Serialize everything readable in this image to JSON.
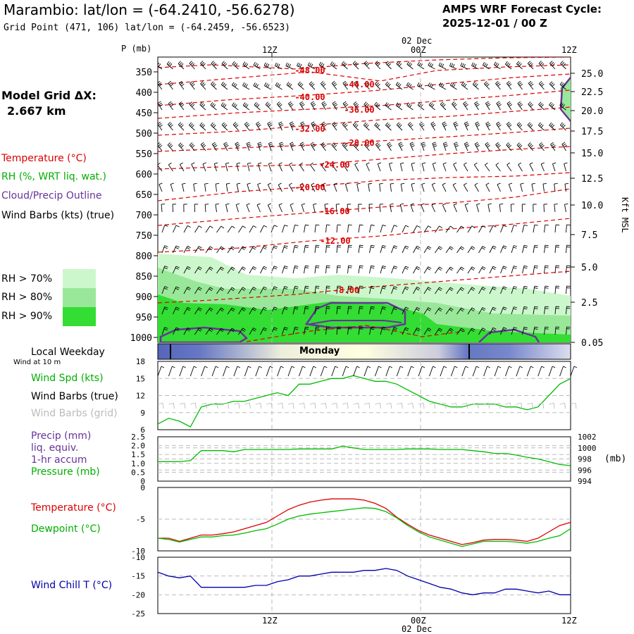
{
  "header": {
    "title": "Marambio:  lat/lon = (-64.2410, -56.6278)",
    "subtitle": "Grid Point (471, 106) lat/lon = (-64.2459, -56.6523)",
    "cycle_line1": "AMPS WRF Forecast Cycle:",
    "cycle_line2": "2025-12-01 / 00  Z"
  },
  "left_legend": {
    "model_grid_label": "Model Grid ΔX:",
    "model_grid_value": "2.667 km",
    "temperature": "Temperature (°C)",
    "rh": "RH (%, WRT liq. wat.)",
    "cloud": "Cloud/Precip Outline",
    "wind_barbs": "Wind Barbs (kts) (true)",
    "rh70": "RH > 70%",
    "rh80": "RH > 80%",
    "rh90": "RH > 90%",
    "local_weekday": "Local Weekday",
    "wind_at_10m": "Wind at 10 m",
    "wind_spd": "Wind Spd (kts)",
    "wind_barbs_true": "Wind Barbs (true)",
    "wind_barbs_grid": "Wind Barbs (grid)",
    "precip": "Precip (mm)",
    "liq_equiv": "liq. equiv.",
    "one_hr": "1-hr accum",
    "pressure": "Pressure (mb)",
    "temp2": "Temperature (°C)",
    "dewpoint": "Dewpoint (°C)",
    "windchill": "Wind Chill T (°C)"
  },
  "colors": {
    "temperature": "#dd0000",
    "rh_text": "#00b000",
    "cloud": "#663399",
    "grid_barb": "#bbbbbb",
    "rh70": "#ccf7cc",
    "rh80": "#99e899",
    "rh90": "#33dd33",
    "windchill": "#0000aa",
    "pressure_line": "#00bb00"
  },
  "time_axis": {
    "top_labels": [
      "12Z",
      "00Z",
      "12Z"
    ],
    "date_label": "02 Dec",
    "weekday": "Monday"
  },
  "chart_data": [
    {
      "type": "contour",
      "name": "upper-air",
      "ylabel": "P (mb)",
      "y_ticks": [
        "350",
        "400",
        "450",
        "500",
        "550",
        "600",
        "650",
        "700",
        "750",
        "800",
        "850",
        "900",
        "950",
        "1000"
      ],
      "right_ticks": [
        "25.0",
        "22.5",
        "20.0",
        "17.5",
        "15.0",
        "12.5",
        "10.0",
        "7.5",
        "5.0",
        "2.5",
        "0.05"
      ],
      "right_label": "Kft MSL",
      "temp_labels": [
        "-48.00",
        "-44.00",
        "-40.00",
        "-36.00",
        "-32.00",
        "-28.00",
        "-24.00",
        "-20.00",
        "-16.00",
        "-12.00",
        "-8.00"
      ]
    },
    {
      "type": "line",
      "name": "wind-speed",
      "y_ticks": [
        "18",
        "15",
        "12",
        "9",
        "6"
      ],
      "ylim": [
        6,
        18
      ],
      "values": [
        7,
        8,
        7.5,
        6.5,
        10,
        10.5,
        10.5,
        11,
        11,
        11.5,
        12,
        12.5,
        12,
        14,
        14,
        14.5,
        15,
        15,
        15.5,
        15,
        14.5,
        14.5,
        14,
        13,
        12,
        11,
        10.5,
        10,
        10,
        10.5,
        10.5,
        10.5,
        10,
        10,
        9.5,
        10,
        12,
        14,
        15
      ]
    },
    {
      "type": "line",
      "name": "pressure-precip",
      "left_ticks": [
        "2.5",
        "2.0",
        "1.5",
        "1.0",
        "0.5",
        "0"
      ],
      "right_ticks": [
        "1002",
        "1000",
        "998",
        "996",
        "994"
      ],
      "right_unit": "(mb)",
      "ylim": [
        994,
        1002
      ],
      "values": [
        997.5,
        997.5,
        997.5,
        997.7,
        999.5,
        999.5,
        999.5,
        999.3,
        999.7,
        999.7,
        999.7,
        999.7,
        999.7,
        999.8,
        999.8,
        999.8,
        999.8,
        1000.3,
        1000,
        999.7,
        999.7,
        999.7,
        999.7,
        999.8,
        999.8,
        999.8,
        999.7,
        999.7,
        999.7,
        999.5,
        999.3,
        999,
        999,
        998.7,
        998.3,
        998,
        997.5,
        997,
        996.8
      ]
    },
    {
      "type": "line",
      "name": "temperature-dewpoint",
      "y_ticks": [
        "0",
        "-5",
        "-10"
      ],
      "ylim": [
        -10,
        0
      ],
      "series": [
        {
          "name": "Temperature",
          "values": [
            -8,
            -8,
            -8.5,
            -8,
            -7.5,
            -7.5,
            -7.3,
            -7,
            -6.5,
            -6,
            -5.5,
            -4.5,
            -3.5,
            -2.8,
            -2.3,
            -2,
            -1.8,
            -1.8,
            -1.8,
            -2,
            -2.5,
            -3.3,
            -4.7,
            -5.8,
            -6.8,
            -7.5,
            -8,
            -8.5,
            -9,
            -8.7,
            -8.3,
            -8.2,
            -8.2,
            -8.3,
            -8.5,
            -8,
            -7,
            -6,
            -5.5
          ]
        },
        {
          "name": "Dewpoint",
          "values": [
            -8,
            -8.2,
            -8.6,
            -8.2,
            -7.8,
            -7.8,
            -7.6,
            -7.5,
            -7.2,
            -6.8,
            -6.5,
            -5.8,
            -5,
            -4.5,
            -4.2,
            -4,
            -3.8,
            -3.6,
            -3.4,
            -3.2,
            -3.3,
            -3.8,
            -4.8,
            -6,
            -7,
            -7.8,
            -8.3,
            -8.8,
            -9.3,
            -8.9,
            -8.5,
            -8.5,
            -8.5,
            -8.6,
            -8.8,
            -8.5,
            -8,
            -7.6,
            -6.5
          ]
        }
      ]
    },
    {
      "type": "line",
      "name": "wind-chill",
      "y_ticks": [
        "-10",
        "-15",
        "-20",
        "-25"
      ],
      "ylim": [
        -25,
        -10
      ],
      "values": [
        -14,
        -15,
        -15.5,
        -15,
        -18,
        -18,
        -18,
        -18,
        -18,
        -17.5,
        -17.5,
        -16.5,
        -16,
        -15,
        -15,
        -14.5,
        -14,
        -14,
        -14,
        -13.5,
        -13.5,
        -13,
        -13.5,
        -15,
        -16,
        -17,
        -18,
        -18.5,
        -19.5,
        -20,
        -19.5,
        -19.5,
        -18.5,
        -18.5,
        -19,
        -19.5,
        -19,
        -20,
        -20
      ]
    }
  ],
  "bottom_axis": {
    "labels": [
      "12Z",
      "00Z",
      "12Z"
    ],
    "date_label": "02 Dec"
  }
}
